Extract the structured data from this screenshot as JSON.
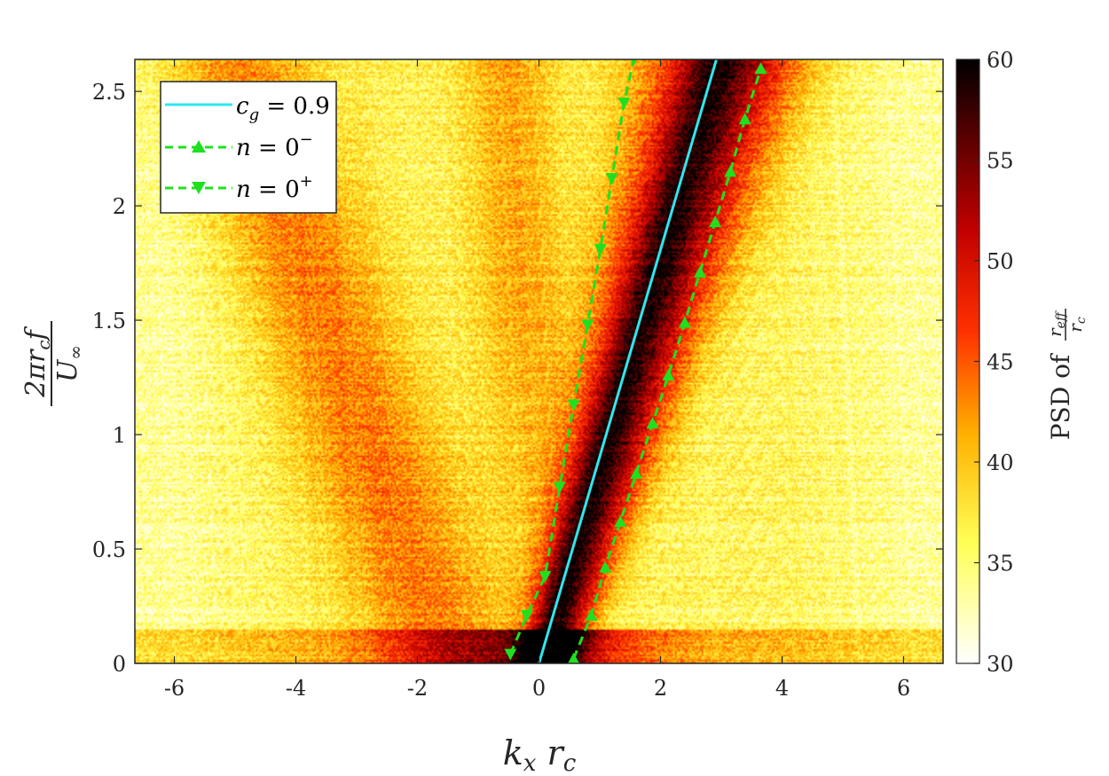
{
  "chart_data": {
    "type": "heatmap",
    "title": "",
    "xlabel": {
      "main": "k",
      "sub1": "x",
      "main2": "r",
      "sub2": "c"
    },
    "ylabel": {
      "numerator": "2πr",
      "num_sub": "c",
      "num_tail": "f",
      "denominator": "U",
      "den_sub": "∞"
    },
    "xlim": [
      -6.65,
      6.65
    ],
    "ylim": [
      0,
      2.64
    ],
    "xticks": [
      -6,
      -4,
      -2,
      0,
      2,
      4,
      6
    ],
    "xtick_labels": [
      "-6",
      "-4",
      "-2",
      "0",
      "2",
      "4",
      "6"
    ],
    "yticks": [
      0,
      0.5,
      1,
      1.5,
      2,
      2.5
    ],
    "ytick_labels": [
      "0",
      "0.5",
      "1",
      "1.5",
      "2",
      "2.5"
    ],
    "colorbar": {
      "range": [
        30,
        60
      ],
      "ticks": [
        30,
        35,
        40,
        45,
        50,
        55,
        60
      ],
      "tick_labels": [
        "30",
        "35",
        "40",
        "45",
        "50",
        "55",
        "60"
      ],
      "label_prefix": "PSD of",
      "label_fraction_numerator": "r",
      "label_fraction_num_sub": "eff",
      "label_fraction_denominator": "r",
      "label_fraction_den_sub": "c",
      "colormap": [
        "#ffffff",
        "#ffff40",
        "#ffb000",
        "#ff5000",
        "#d00000",
        "#700000",
        "#000000"
      ]
    },
    "legend": {
      "placement": "top-left",
      "entries": [
        {
          "label_main": "c",
          "label_sub": "g",
          "label_sup": "",
          "label_tail": " = 0.9",
          "color": "#2ee8f0",
          "style": "solid",
          "marker": "none"
        },
        {
          "label_main": "n",
          "label_sub": "",
          "label_sup": "−",
          "label_tail": " = 0",
          "color": "#1fe01f",
          "style": "dashed",
          "marker": "triangle-up"
        },
        {
          "label_main": "n",
          "label_sub": "",
          "label_sup": "+",
          "label_tail": " = 0",
          "color": "#1fe01f",
          "style": "dashed",
          "marker": "triangle-down"
        }
      ]
    },
    "series": [
      {
        "name": "c_g = 0.9",
        "color": "#2ee8f0",
        "points": [
          [
            0,
            0
          ],
          [
            2.92,
            2.64
          ]
        ]
      },
      {
        "name": "n = 0−",
        "color": "#1fe01f",
        "marker": "triangle-up",
        "points": [
          [
            0.57,
            0.02
          ],
          [
            0.86,
            0.21
          ],
          [
            1.09,
            0.42
          ],
          [
            1.34,
            0.62
          ],
          [
            1.6,
            0.83
          ],
          [
            1.87,
            1.05
          ],
          [
            2.13,
            1.26
          ],
          [
            2.4,
            1.49
          ],
          [
            2.65,
            1.71
          ],
          [
            2.9,
            1.93
          ],
          [
            3.15,
            2.15
          ],
          [
            3.39,
            2.38
          ],
          [
            3.65,
            2.6
          ]
        ]
      },
      {
        "name": "n = 0+",
        "color": "#1fe01f",
        "marker": "triangle-down",
        "points": [
          [
            -0.47,
            0.04
          ],
          [
            -0.2,
            0.21
          ],
          [
            0.1,
            0.38
          ],
          [
            0.34,
            0.77
          ],
          [
            0.57,
            1.13
          ],
          [
            0.8,
            1.48
          ],
          [
            1.01,
            1.81
          ],
          [
            1.2,
            2.12
          ],
          [
            1.4,
            2.45
          ],
          [
            1.56,
            2.64
          ]
        ]
      }
    ]
  }
}
